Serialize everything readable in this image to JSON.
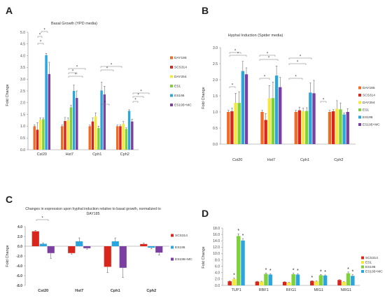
{
  "chart_data": [
    {
      "panel": "A",
      "type": "bar",
      "title": "Basal Growth (YPD media)",
      "ylabel": "Fold Change",
      "xlabel": "",
      "ylim": [
        0,
        5
      ],
      "yticks": [
        "0.0",
        "0.5",
        "1.0",
        "1.5",
        "2.0",
        "2.5",
        "3.0",
        "3.5",
        "4.0",
        "4.5",
        "5.0"
      ],
      "categories": [
        "Cst20",
        "Hst7",
        "Cph1",
        "Cph2"
      ],
      "legend_position": "right",
      "series": [
        {
          "name": "DAY185",
          "color": "#f26b25",
          "values": [
            1.0,
            1.0,
            1.0,
            1.0
          ],
          "errors": [
            0.05,
            0.05,
            0.05,
            0.05
          ]
        },
        {
          "name": "SCS314",
          "color": "#d9261c",
          "values": [
            0.85,
            1.22,
            1.2,
            1.0
          ],
          "errors": [
            0.3,
            0.15,
            0.15,
            0.05
          ]
        },
        {
          "name": "DAY254",
          "color": "#f4e93b",
          "values": [
            1.27,
            1.25,
            1.42,
            1.1
          ],
          "errors": [
            0.08,
            0.1,
            0.15,
            0.1
          ]
        },
        {
          "name": "ES1",
          "color": "#7ed13a",
          "values": [
            1.3,
            1.8,
            0.92,
            0.88
          ],
          "errors": [
            0.05,
            0.1,
            0.08,
            0.05
          ]
        },
        {
          "name": "ES195",
          "color": "#2aa5dd",
          "values": [
            4.02,
            2.5,
            2.52,
            1.65
          ],
          "errors": [
            0.08,
            0.25,
            0.35,
            0.05
          ]
        },
        {
          "name": "ES195+MC",
          "color": "#7a3fa0",
          "values": [
            3.22,
            2.2,
            2.35,
            1.2
          ],
          "errors": [
            0.5,
            0.3,
            0.35,
            0.1
          ]
        }
      ],
      "annotations": [
        "*"
      ]
    },
    {
      "panel": "B",
      "type": "bar",
      "title": "Hyphal Induction (Spider media)",
      "ylabel": "Fold Change",
      "xlabel": "",
      "ylim": [
        0,
        3
      ],
      "yticks": [
        "0.0",
        "0.5",
        "1.0",
        "1.5",
        "2.0",
        "2.5",
        "3.0"
      ],
      "categories": [
        "Cst20",
        "Hst7",
        "Cph1",
        "Cph2"
      ],
      "legend_position": "right",
      "series": [
        {
          "name": "DAY185",
          "color": "#f26b25",
          "values": [
            1.0,
            1.0,
            1.0,
            1.0
          ],
          "errors": [
            0.05,
            0.05,
            0.05,
            0.05
          ]
        },
        {
          "name": "SCS314",
          "color": "#d9261c",
          "values": [
            1.02,
            0.75,
            1.05,
            1.02
          ],
          "errors": [
            0.1,
            0.2,
            0.1,
            0.05
          ]
        },
        {
          "name": "DAY254",
          "color": "#f4e93b",
          "values": [
            1.28,
            1.42,
            1.02,
            1.1
          ],
          "errors": [
            0.3,
            0.4,
            0.1,
            0.25
          ]
        },
        {
          "name": "ES1",
          "color": "#7ed13a",
          "values": [
            1.28,
            1.43,
            1.03,
            1.08
          ],
          "errors": [
            0.35,
            0.5,
            0.1,
            0.2
          ]
        },
        {
          "name": "ES195",
          "color": "#2aa5dd",
          "values": [
            2.27,
            2.13,
            1.6,
            0.92
          ],
          "errors": [
            0.3,
            0.3,
            0.3,
            0.05
          ]
        },
        {
          "name": "ES195+MC",
          "color": "#7a3fa0",
          "values": [
            2.17,
            1.77,
            1.58,
            1.0
          ],
          "errors": [
            0.2,
            0.3,
            0.4,
            0.1
          ]
        }
      ],
      "annotations": [
        "*"
      ]
    },
    {
      "panel": "C",
      "type": "bar",
      "title": "Changes in expression upon hyphal induction relative to basal growth, normalized to DAY185",
      "ylabel": "Fold Change",
      "xlabel": "",
      "ylim": [
        -8,
        4
      ],
      "yticks": [
        "4.0",
        "2.0",
        "0.0",
        "-2.0",
        "-4.0",
        "-6.0",
        "-8.0"
      ],
      "categories": [
        "Cst20",
        "Hst7",
        "Cph1",
        "Cph2"
      ],
      "legend_position": "right",
      "series": [
        {
          "name": "SCS314",
          "color": "#d9261c",
          "values": [
            3.05,
            -1.4,
            -4.2,
            0.45
          ],
          "errors": [
            0.2,
            0.2,
            1.2,
            0.2
          ]
        },
        {
          "name": "ES195",
          "color": "#2aa5dd",
          "values": [
            0.5,
            1.0,
            1.0,
            -0.3
          ],
          "errors": [
            0.2,
            0.7,
            0.7,
            0.2
          ]
        },
        {
          "name": "ES195+MC",
          "color": "#7a3fa0",
          "values": [
            -1.4,
            -0.4,
            -4.4,
            -1.3
          ],
          "errors": [
            1.1,
            0.2,
            2.0,
            0.5
          ]
        }
      ],
      "annotations": [
        "*"
      ]
    },
    {
      "panel": "D",
      "type": "bar",
      "title": "",
      "ylabel": "Fold Change",
      "xlabel": "",
      "ylim": [
        0,
        18
      ],
      "yticks": [
        "0.0",
        "2.0",
        "4.0",
        "6.0",
        "8.0",
        "10.0",
        "12.0",
        "14.0",
        "16.0",
        "18.0"
      ],
      "categories": [
        "TUP1",
        "RBF1",
        "RFG1",
        "MIG1",
        "NRG1"
      ],
      "legend_position": "right",
      "series": [
        {
          "name": "SCS314",
          "color": "#d9261c",
          "values": [
            1.3,
            1.2,
            1.1,
            1.4,
            1.7
          ],
          "errors": [
            0.1,
            0.1,
            0.1,
            0.1,
            0.1
          ]
        },
        {
          "name": "ES1",
          "color": "#f4e93b",
          "values": [
            2.0,
            1.2,
            0.9,
            1.3,
            1.1
          ],
          "errors": [
            0.3,
            0.1,
            0.1,
            0.1,
            0.1
          ]
        },
        {
          "name": "ES195",
          "color": "#7ed13a",
          "values": [
            15.5,
            3.6,
            3.5,
            3.2,
            3.8
          ],
          "errors": [
            0.7,
            0.3,
            0.3,
            0.2,
            0.4
          ]
        },
        {
          "name": "ES195+MC",
          "color": "#2aa5dd",
          "values": [
            14.1,
            3.4,
            3.4,
            3.1,
            3.0
          ],
          "errors": [
            0.6,
            0.3,
            0.3,
            0.2,
            0.4
          ]
        }
      ],
      "annotations": [
        "*"
      ]
    }
  ],
  "panel_labels": [
    "A",
    "B",
    "C",
    "D"
  ]
}
